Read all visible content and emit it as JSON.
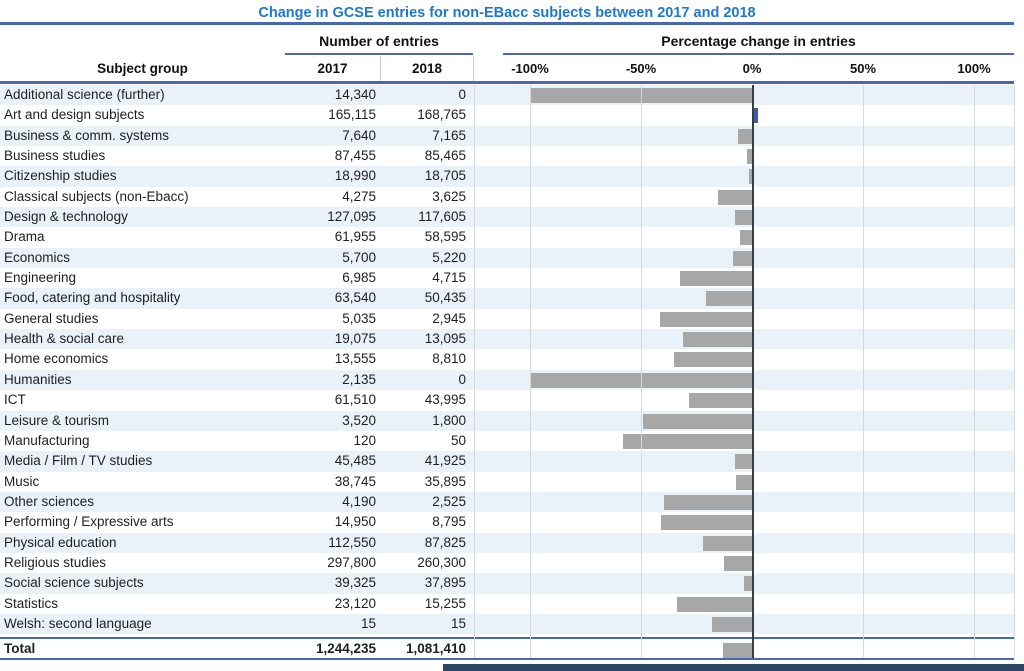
{
  "title": "Change in GCSE entries for non-EBacc subjects between 2017 and 2018",
  "colors": {
    "title_blue": "#1e78cc",
    "rule_blue": "#4a67b1",
    "row_stripe": "#e9f1f9",
    "bar_negative": "#a7a7a7",
    "bar_positive": "#3f5ba9",
    "zero_line": "#3d3d3d",
    "gridline": "#d8d8d8",
    "bottom_band_navy": "#2d4663"
  },
  "table": {
    "headers": {
      "subject": "Subject group",
      "entries_group": "Number of entries",
      "pct_group": "Percentage change in entries",
      "y2017": "2017",
      "y2018": "2018"
    },
    "axis_ticks": [
      "-100%",
      "-50%",
      "0%",
      "50%",
      "100%"
    ],
    "rows": [
      {
        "subject": "Additional science (further)",
        "entries_2017": "14,340",
        "entries_2018": "0",
        "pct_change": -100
      },
      {
        "subject": "Art and design subjects",
        "entries_2017": "165,115",
        "entries_2018": "168,765",
        "pct_change": 2.2
      },
      {
        "subject": "Business & comm. systems",
        "entries_2017": "7,640",
        "entries_2018": "7,165",
        "pct_change": -6.2
      },
      {
        "subject": "Business studies",
        "entries_2017": "87,455",
        "entries_2018": "85,465",
        "pct_change": -2.3
      },
      {
        "subject": "Citizenship studies",
        "entries_2017": "18,990",
        "entries_2018": "18,705",
        "pct_change": -1.5
      },
      {
        "subject": "Classical subjects (non-Ebacc)",
        "entries_2017": "4,275",
        "entries_2018": "3,625",
        "pct_change": -15.2
      },
      {
        "subject": "Design & technology",
        "entries_2017": "127,095",
        "entries_2018": "117,605",
        "pct_change": -7.5
      },
      {
        "subject": "Drama",
        "entries_2017": "61,955",
        "entries_2018": "58,595",
        "pct_change": -5.4
      },
      {
        "subject": "Economics",
        "entries_2017": "5,700",
        "entries_2018": "5,220",
        "pct_change": -8.4
      },
      {
        "subject": "Engineering",
        "entries_2017": "6,985",
        "entries_2018": "4,715",
        "pct_change": -32.5
      },
      {
        "subject": "Food, catering and hospitality",
        "entries_2017": "63,540",
        "entries_2018": "50,435",
        "pct_change": -20.6
      },
      {
        "subject": "General studies",
        "entries_2017": "5,035",
        "entries_2018": "2,945",
        "pct_change": -41.5
      },
      {
        "subject": "Health & social care",
        "entries_2017": "19,075",
        "entries_2018": "13,095",
        "pct_change": -31.3
      },
      {
        "subject": "Home economics",
        "entries_2017": "13,555",
        "entries_2018": "8,810",
        "pct_change": -35.0
      },
      {
        "subject": "Humanities",
        "entries_2017": "2,135",
        "entries_2018": "0",
        "pct_change": -100
      },
      {
        "subject": "ICT",
        "entries_2017": "61,510",
        "entries_2018": "43,995",
        "pct_change": -28.5
      },
      {
        "subject": "Leisure & tourism",
        "entries_2017": "3,520",
        "entries_2018": "1,800",
        "pct_change": -48.9
      },
      {
        "subject": "Manufacturing",
        "entries_2017": "120",
        "entries_2018": "50",
        "pct_change": -58.3
      },
      {
        "subject": "Media / Film / TV studies",
        "entries_2017": "45,485",
        "entries_2018": "41,925",
        "pct_change": -7.8
      },
      {
        "subject": "Music",
        "entries_2017": "38,745",
        "entries_2018": "35,895",
        "pct_change": -7.4
      },
      {
        "subject": "Other sciences",
        "entries_2017": "4,190",
        "entries_2018": "2,525",
        "pct_change": -39.7
      },
      {
        "subject": "Performing / Expressive arts",
        "entries_2017": "14,950",
        "entries_2018": "8,795",
        "pct_change": -41.2
      },
      {
        "subject": "Physical education",
        "entries_2017": "112,550",
        "entries_2018": "87,825",
        "pct_change": -22.0
      },
      {
        "subject": "Religious studies",
        "entries_2017": "297,800",
        "entries_2018": "260,300",
        "pct_change": -12.6
      },
      {
        "subject": "Social science subjects",
        "entries_2017": "39,325",
        "entries_2018": "37,895",
        "pct_change": -3.6
      },
      {
        "subject": "Statistics",
        "entries_2017": "23,120",
        "entries_2018": "15,255",
        "pct_change": -34.0
      },
      {
        "subject": "Welsh: second language",
        "entries_2017": "15",
        "entries_2018": "15",
        "pct_change": -18.0
      }
    ],
    "total": {
      "subject": "Total",
      "entries_2017": "1,244,235",
      "entries_2018": "1,081,410",
      "pct_change": -13.1
    }
  },
  "chart_data": {
    "type": "bar",
    "orientation": "horizontal",
    "title": "Change in GCSE entries for non-EBacc subjects between 2017 and 2018",
    "xlabel": "Percentage change in entries",
    "ylabel": "Subject group",
    "xlim": [
      -100,
      100
    ],
    "x_ticks": [
      "-100%",
      "-50%",
      "0%",
      "50%",
      "100%"
    ],
    "grid": true,
    "bar_color_negative": "#a7a7a7",
    "bar_color_positive": "#3f5ba9",
    "categories": [
      "Additional science (further)",
      "Art and design subjects",
      "Business & comm. systems",
      "Business studies",
      "Citizenship studies",
      "Classical subjects (non-Ebacc)",
      "Design & technology",
      "Drama",
      "Economics",
      "Engineering",
      "Food, catering and hospitality",
      "General studies",
      "Health & social care",
      "Home economics",
      "Humanities",
      "ICT",
      "Leisure & tourism",
      "Manufacturing",
      "Media / Film / TV studies",
      "Music",
      "Other sciences",
      "Performing / Expressive arts",
      "Physical education",
      "Religious studies",
      "Social science subjects",
      "Statistics",
      "Welsh: second language"
    ],
    "series": [
      {
        "name": "Number of entries 2017",
        "values": [
          14340,
          165115,
          7640,
          87455,
          18990,
          4275,
          127095,
          61955,
          5700,
          6985,
          63540,
          5035,
          19075,
          13555,
          2135,
          61510,
          3520,
          120,
          45485,
          38745,
          4190,
          14950,
          112550,
          297800,
          39325,
          23120,
          15
        ]
      },
      {
        "name": "Number of entries 2018",
        "values": [
          0,
          168765,
          7165,
          85465,
          18705,
          3625,
          117605,
          58595,
          5220,
          4715,
          50435,
          2945,
          13095,
          8810,
          0,
          43995,
          1800,
          50,
          41925,
          35895,
          2525,
          8795,
          87825,
          260300,
          37895,
          15255,
          15
        ]
      },
      {
        "name": "Percentage change in entries (%)",
        "values": [
          -100,
          2.2,
          -6.2,
          -2.3,
          -1.5,
          -15.2,
          -7.5,
          -5.4,
          -8.4,
          -32.5,
          -20.6,
          -41.5,
          -31.3,
          -35.0,
          -100,
          -28.5,
          -48.9,
          -58.3,
          -7.8,
          -7.4,
          -39.7,
          -41.2,
          -22.0,
          -12.6,
          -3.6,
          -34.0,
          -18.0
        ]
      }
    ],
    "total": {
      "label": "Total",
      "entries_2017": 1244235,
      "entries_2018": 1081410,
      "pct_change": -13.1
    }
  }
}
